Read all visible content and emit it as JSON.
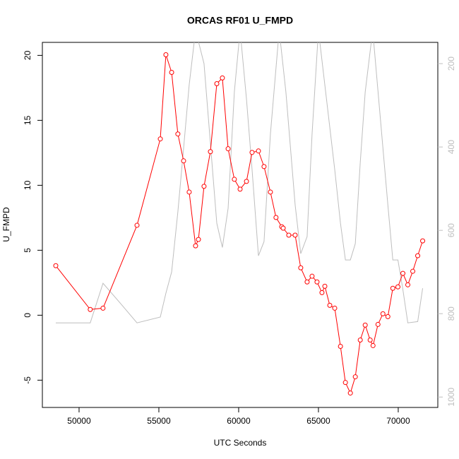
{
  "chart_data": {
    "type": "line",
    "title": "ORCAS RF01 U_FMPD",
    "xlabel": "UTC Seconds",
    "ylabel": "U_FMPD",
    "xlim": [
      47700,
      72480
    ],
    "xticks": [
      50000,
      55000,
      60000,
      65000,
      70000
    ],
    "ylim": [
      -7.1,
      21.0
    ],
    "yticks": [
      -5,
      0,
      5,
      10,
      15,
      20
    ],
    "y2lim": [
      1025,
      149
    ],
    "y2ticks": [
      200,
      400,
      600,
      800,
      1000
    ],
    "series": [
      {
        "color": "#bebebe",
        "axis": "y2",
        "x": [
          48540,
          50700,
          51500,
          52610,
          53630,
          55090,
          55440,
          55800,
          56190,
          56550,
          56900,
          57300,
          57830,
          58630,
          58980,
          59340,
          59730,
          60090,
          60490,
          60840,
          61240,
          61590,
          61990,
          62540,
          62960,
          63540,
          63890,
          64290,
          64600,
          65000,
          66020,
          66380,
          66690,
          67000,
          67310,
          67620,
          67930,
          68400,
          69350,
          69660,
          69980,
          70290,
          70600,
          71220,
          71530
        ],
        "values": [
          822,
          822,
          727,
          776,
          822,
          808,
          751,
          700,
          556,
          403,
          251,
          120,
          200,
          583,
          641,
          547,
          268,
          120,
          285,
          454,
          661,
          627,
          369,
          120,
          268,
          539,
          656,
          615,
          369,
          120,
          454,
          583,
          671,
          671,
          632,
          437,
          268,
          120,
          539,
          671,
          671,
          742,
          822,
          819,
          739
        ]
      },
      {
        "color": "#ff0000",
        "marker": "circle",
        "x": [
          48540,
          50700,
          51500,
          53630,
          55090,
          55440,
          55800,
          56190,
          56550,
          56900,
          57300,
          57480,
          57830,
          58230,
          58630,
          58980,
          59340,
          59730,
          60090,
          60490,
          60840,
          61240,
          61590,
          61990,
          62340,
          62700,
          62790,
          63140,
          63540,
          63890,
          64290,
          64600,
          64910,
          65220,
          65400,
          65710,
          66020,
          66380,
          66690,
          67000,
          67310,
          67620,
          67930,
          68240,
          68420,
          68730,
          69040,
          69350,
          69660,
          69980,
          70290,
          70600,
          70910,
          71220,
          71530
        ],
        "values": [
          3.81,
          0.44,
          0.54,
          6.92,
          13.57,
          20.05,
          18.69,
          13.95,
          11.88,
          9.48,
          5.34,
          5.83,
          9.92,
          12.59,
          17.82,
          18.26,
          12.81,
          10.46,
          9.7,
          10.3,
          12.53,
          12.64,
          11.44,
          9.48,
          7.52,
          6.81,
          6.7,
          6.16,
          6.16,
          3.65,
          2.56,
          3.0,
          2.56,
          1.74,
          2.23,
          0.76,
          0.54,
          -2.4,
          -5.18,
          -5.99,
          -4.74,
          -1.91,
          -0.76,
          -1.91,
          -2.34,
          -0.71,
          0.11,
          -0.11,
          2.07,
          2.18,
          3.22,
          2.34,
          3.38,
          4.58,
          5.72
        ]
      }
    ]
  }
}
